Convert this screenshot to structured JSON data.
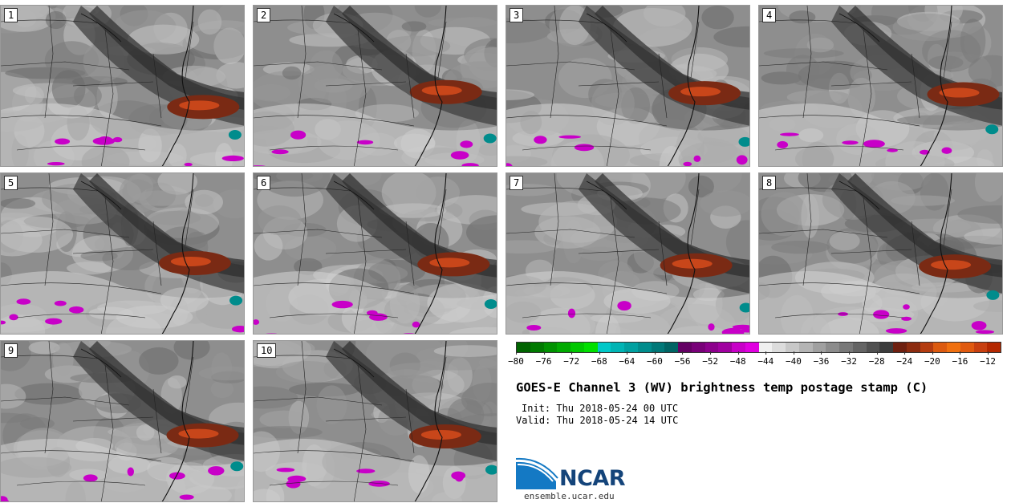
{
  "panels": [
    {
      "label": "1"
    },
    {
      "label": "2"
    },
    {
      "label": "3"
    },
    {
      "label": "4"
    },
    {
      "label": "5"
    },
    {
      "label": "6"
    },
    {
      "label": "7"
    },
    {
      "label": "8"
    },
    {
      "label": "9"
    },
    {
      "label": "10"
    }
  ],
  "colorbar": {
    "colors": [
      "#006400",
      "#007a00",
      "#009200",
      "#00aa00",
      "#00c800",
      "#00e000",
      "#00c8c8",
      "#00b4b4",
      "#00a0a0",
      "#008c8c",
      "#007878",
      "#006464",
      "#640064",
      "#780078",
      "#8c008c",
      "#a000a0",
      "#c800c8",
      "#e000e0",
      "#f0f0f0",
      "#dcdcdc",
      "#c8c8c8",
      "#b4b4b4",
      "#a0a0a0",
      "#8c8c8c",
      "#787878",
      "#646464",
      "#505050",
      "#3c3c3c",
      "#6e2010",
      "#8c2c10",
      "#b43c10",
      "#dc5a10",
      "#f07010",
      "#e05a10",
      "#c84010",
      "#b42800"
    ],
    "ticks": [
      "−80",
      "−76",
      "−72",
      "−68",
      "−64",
      "−60",
      "−56",
      "−52",
      "−48",
      "−44",
      "−40",
      "−36",
      "−32",
      "−28",
      "−24",
      "−20",
      "−16",
      "−12"
    ]
  },
  "title": "GOES-E Channel 3 (WV) brightness temp postage stamp (C)",
  "init": "Init: Thu 2018-05-24 00 UTC",
  "valid": "Valid: Thu 2018-05-24 14 UTC",
  "logo": {
    "name": "NCAR",
    "url": "ensemble.ucar.edu"
  }
}
